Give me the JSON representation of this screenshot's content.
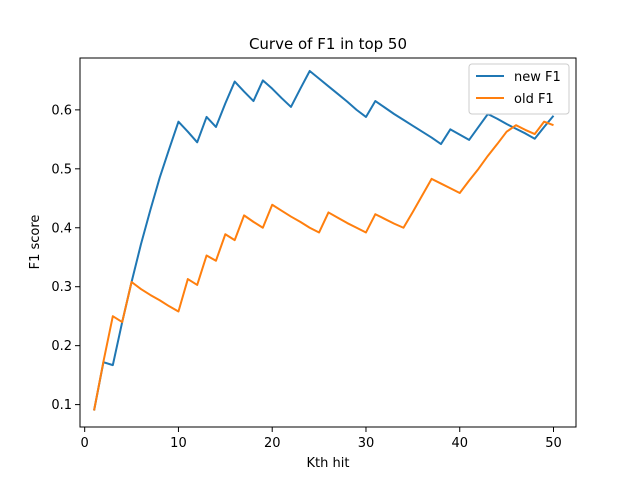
{
  "chart_data": {
    "type": "line",
    "title": "Curve of F1 in top 50",
    "xlabel": "Kth hit",
    "ylabel": "F1 score",
    "xlim": [
      -0.5,
      52.4
    ],
    "ylim": [
      0.062,
      0.688
    ],
    "xticks": [
      0,
      10,
      20,
      30,
      40,
      50
    ],
    "yticks": [
      0.1,
      0.2,
      0.3,
      0.4,
      0.5,
      0.6
    ],
    "ytick_labels": [
      "0.1",
      "0.2",
      "0.3",
      "0.4",
      "0.5",
      "0.6"
    ],
    "legend_position": "top-right",
    "grid": false,
    "series": [
      {
        "name": "new F1",
        "color": "#1f77b4",
        "x": [
          1,
          2,
          3,
          4,
          5,
          6,
          7,
          8,
          9,
          10,
          11,
          12,
          13,
          14,
          15,
          16,
          17,
          18,
          19,
          20,
          21,
          22,
          23,
          24,
          25,
          26,
          27,
          28,
          29,
          30,
          31,
          32,
          33,
          34,
          35,
          36,
          37,
          38,
          39,
          40,
          41,
          42,
          43,
          44,
          45,
          46,
          47,
          48,
          49,
          50
        ],
        "values": [
          0.09,
          0.172,
          0.167,
          0.24,
          0.308,
          0.372,
          0.43,
          0.485,
          0.533,
          0.58,
          0.563,
          0.545,
          0.588,
          0.571,
          0.611,
          0.648,
          0.631,
          0.615,
          0.65,
          0.636,
          0.62,
          0.605,
          0.636,
          0.666,
          0.653,
          0.64,
          0.627,
          0.614,
          0.6,
          0.588,
          0.615,
          0.604,
          0.593,
          0.583,
          0.573,
          0.563,
          0.553,
          0.542,
          0.567,
          0.558,
          0.549,
          0.571,
          0.593,
          0.585,
          0.576,
          0.568,
          0.56,
          0.551,
          0.571,
          0.59
        ]
      },
      {
        "name": "old F1",
        "color": "#ff7f0e",
        "x": [
          1,
          2,
          3,
          4,
          5,
          6,
          7,
          8,
          9,
          10,
          11,
          12,
          13,
          14,
          15,
          16,
          17,
          18,
          19,
          20,
          21,
          22,
          23,
          24,
          25,
          26,
          27,
          28,
          29,
          30,
          31,
          32,
          33,
          34,
          35,
          36,
          37,
          38,
          39,
          40,
          41,
          42,
          43,
          44,
          45,
          46,
          47,
          48,
          49,
          50
        ],
        "values": [
          0.09,
          0.173,
          0.25,
          0.24,
          0.308,
          0.296,
          0.286,
          0.277,
          0.267,
          0.258,
          0.313,
          0.303,
          0.353,
          0.344,
          0.389,
          0.379,
          0.421,
          0.41,
          0.4,
          0.439,
          0.429,
          0.419,
          0.41,
          0.4,
          0.392,
          0.426,
          0.417,
          0.408,
          0.4,
          0.392,
          0.423,
          0.415,
          0.407,
          0.4,
          0.427,
          0.455,
          0.483,
          0.475,
          0.467,
          0.459,
          0.48,
          0.5,
          0.522,
          0.542,
          0.563,
          0.574,
          0.566,
          0.559,
          0.58,
          0.574
        ]
      }
    ]
  }
}
